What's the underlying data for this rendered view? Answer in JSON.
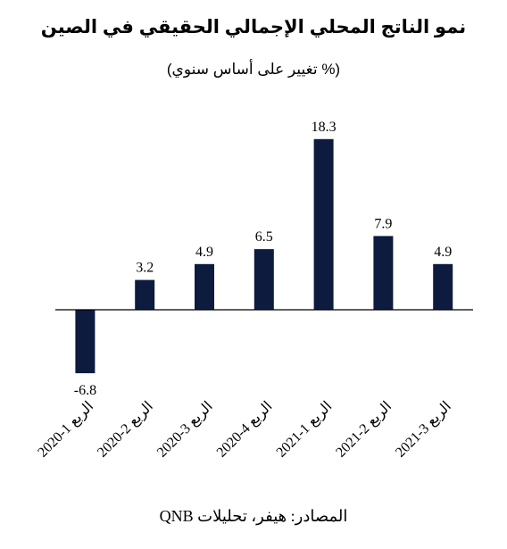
{
  "title": "نمو الناتج المحلي الإجمالي الحقيقي في الصين",
  "subtitle": "(% تغيير على أساس سنوي)",
  "source": "المصادر: هيفر، تحليلات QNB",
  "colors": {
    "bar": "#0d1b3e",
    "axis": "#000000"
  },
  "chart_data": {
    "type": "bar",
    "categories": [
      "الربع 1-2020",
      "الربع 2-2020",
      "الربع 3-2020",
      "الربع 4-2020",
      "الربع 1-2021",
      "الربع 2-2021",
      "الربع 3-2021"
    ],
    "values": [
      -6.8,
      3.2,
      4.9,
      6.5,
      18.3,
      7.9,
      4.9
    ],
    "data_labels": [
      "-6.8",
      "3.2",
      "4.9",
      "6.5",
      "18.3",
      "7.9",
      "4.9"
    ],
    "ylim": [
      -8,
      20
    ],
    "grid": false,
    "legend": "none"
  }
}
